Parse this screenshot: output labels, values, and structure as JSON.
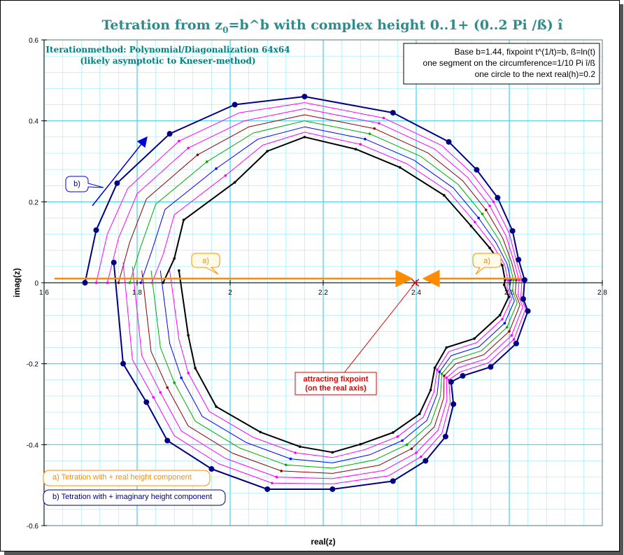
{
  "title": {
    "main": "Tetration from z",
    "sub": "0",
    "rest": "=b^b with complex height 0..1+ (0..2 Pi /ß) î"
  },
  "method": {
    "line1": "Iterationmethod: Polynomial/Diagonalization 64x64",
    "line2": "(likely asymptotic to Kneser-method)"
  },
  "info": {
    "line1": "Base b=1.44, fixpoint t^(1/t)=b, ß=ln(t)",
    "line2": "one segment on the circumference=1/10 Pi î/ß",
    "line3": "one circle to the next  real(h)=0.2"
  },
  "annotations": {
    "a_label": "a)",
    "b_label": "b)",
    "fixpoint_line1": "attracting fixpoint",
    "fixpoint_line2": "(on the real axis)",
    "legend_a": "a) Tetration with + real height component",
    "legend_b": "b) Tetration with + imaginary height component"
  },
  "colors": {
    "title": "#2e8b8b",
    "grid": "#80e8ff",
    "grid_major": "#40d0e8",
    "orange": "#ff8c00",
    "blue": "#000080",
    "red": "#e00000",
    "curves": [
      "#000080",
      "#ff00ff",
      "#ff00ff",
      "#8b0000",
      "#00aa00",
      "#0000ff",
      "#ff00ff",
      "#000000"
    ]
  },
  "chart_data": {
    "type": "scatter",
    "xlabel": "real(z)",
    "ylabel": "imag(z)",
    "xlim": [
      1.6,
      2.8
    ],
    "ylim": [
      -0.6,
      0.6
    ],
    "xticks": [
      "1.6",
      "1.8",
      "2",
      "2.2",
      "2.4",
      "2.6",
      "2.8"
    ],
    "yticks": [
      "0.6",
      "0.4",
      "0.2",
      "0",
      "-0.2",
      "-0.4",
      "-0.6"
    ],
    "grid": true,
    "fixpoint": {
      "x": 2.398,
      "y": 0
    },
    "series": [
      {
        "points": [
          [
            1.688,
            0.0
          ],
          [
            1.712,
            0.13
          ],
          [
            1.757,
            0.246
          ],
          [
            1.87,
            0.368
          ],
          [
            2.01,
            0.44
          ],
          [
            2.16,
            0.46
          ],
          [
            2.35,
            0.42
          ],
          [
            2.47,
            0.348
          ],
          [
            2.53,
            0.279
          ],
          [
            2.575,
            0.21
          ],
          [
            2.607,
            0.128
          ],
          [
            2.62,
            0.057
          ],
          [
            2.633,
            0.007
          ],
          [
            2.63,
            -0.04
          ],
          [
            2.64,
            -0.07
          ],
          [
            2.615,
            -0.15
          ],
          [
            2.56,
            -0.208
          ],
          [
            2.5,
            -0.23
          ],
          [
            2.475,
            -0.245
          ],
          [
            2.48,
            -0.3
          ],
          [
            2.463,
            -0.38
          ],
          [
            2.42,
            -0.44
          ],
          [
            2.35,
            -0.49
          ],
          [
            2.22,
            -0.51
          ],
          [
            2.08,
            -0.51
          ],
          [
            1.96,
            -0.46
          ],
          [
            1.865,
            -0.39
          ],
          [
            1.82,
            -0.295
          ],
          [
            1.77,
            -0.2
          ],
          [
            1.75,
            0.05
          ]
        ]
      },
      {
        "points": [
          [
            1.712,
            0.0
          ],
          [
            1.736,
            0.12
          ],
          [
            1.78,
            0.233
          ],
          [
            1.89,
            0.35
          ],
          [
            2.02,
            0.42
          ],
          [
            2.16,
            0.445
          ],
          [
            2.33,
            0.407
          ],
          [
            2.455,
            0.339
          ],
          [
            2.52,
            0.27
          ],
          [
            2.566,
            0.2
          ],
          [
            2.6,
            0.122
          ],
          [
            2.615,
            0.055
          ],
          [
            2.627,
            0.007
          ],
          [
            2.625,
            -0.035
          ],
          [
            2.635,
            -0.065
          ],
          [
            2.61,
            -0.14
          ],
          [
            2.555,
            -0.198
          ],
          [
            2.495,
            -0.22
          ],
          [
            2.47,
            -0.24
          ],
          [
            2.473,
            -0.295
          ],
          [
            2.455,
            -0.372
          ],
          [
            2.41,
            -0.43
          ],
          [
            2.34,
            -0.477
          ],
          [
            2.22,
            -0.497
          ],
          [
            2.09,
            -0.495
          ],
          [
            1.975,
            -0.447
          ],
          [
            1.88,
            -0.378
          ],
          [
            1.835,
            -0.283
          ],
          [
            1.79,
            -0.19
          ],
          [
            1.77,
            0.05
          ]
        ]
      },
      {
        "points": [
          [
            1.736,
            0.0
          ],
          [
            1.76,
            0.11
          ],
          [
            1.8,
            0.22
          ],
          [
            1.91,
            0.333
          ],
          [
            2.03,
            0.4
          ],
          [
            2.16,
            0.43
          ],
          [
            2.32,
            0.394
          ],
          [
            2.44,
            0.33
          ],
          [
            2.51,
            0.261
          ],
          [
            2.558,
            0.19
          ],
          [
            2.593,
            0.116
          ],
          [
            2.61,
            0.053
          ],
          [
            2.621,
            0.007
          ],
          [
            2.619,
            -0.03
          ],
          [
            2.629,
            -0.06
          ],
          [
            2.605,
            -0.13
          ],
          [
            2.55,
            -0.188
          ],
          [
            2.49,
            -0.21
          ],
          [
            2.465,
            -0.235
          ],
          [
            2.466,
            -0.29
          ],
          [
            2.447,
            -0.364
          ],
          [
            2.4,
            -0.42
          ],
          [
            2.33,
            -0.464
          ],
          [
            2.22,
            -0.484
          ],
          [
            2.1,
            -0.48
          ],
          [
            1.99,
            -0.434
          ],
          [
            1.895,
            -0.366
          ],
          [
            1.85,
            -0.271
          ],
          [
            1.81,
            -0.18
          ],
          [
            1.79,
            0.04
          ]
        ]
      },
      {
        "points": [
          [
            1.76,
            0.0
          ],
          [
            1.784,
            0.1
          ],
          [
            1.82,
            0.207
          ],
          [
            1.93,
            0.316
          ],
          [
            2.04,
            0.385
          ],
          [
            2.16,
            0.415
          ],
          [
            2.31,
            0.381
          ],
          [
            2.425,
            0.321
          ],
          [
            2.5,
            0.252
          ],
          [
            2.55,
            0.18
          ],
          [
            2.586,
            0.11
          ],
          [
            2.605,
            0.051
          ],
          [
            2.615,
            0.007
          ],
          [
            2.613,
            -0.025
          ],
          [
            2.623,
            -0.055
          ],
          [
            2.6,
            -0.12
          ],
          [
            2.545,
            -0.178
          ],
          [
            2.485,
            -0.2
          ],
          [
            2.46,
            -0.23
          ],
          [
            2.459,
            -0.285
          ],
          [
            2.439,
            -0.356
          ],
          [
            2.39,
            -0.41
          ],
          [
            2.32,
            -0.451
          ],
          [
            2.22,
            -0.471
          ],
          [
            2.11,
            -0.465
          ],
          [
            2.005,
            -0.421
          ],
          [
            1.91,
            -0.354
          ],
          [
            1.865,
            -0.259
          ],
          [
            1.83,
            -0.17
          ],
          [
            1.81,
            0.03
          ]
        ]
      },
      {
        "points": [
          [
            1.784,
            0.0
          ],
          [
            1.808,
            0.09
          ],
          [
            1.84,
            0.194
          ],
          [
            1.95,
            0.299
          ],
          [
            2.05,
            0.37
          ],
          [
            2.16,
            0.4
          ],
          [
            2.3,
            0.368
          ],
          [
            2.41,
            0.312
          ],
          [
            2.49,
            0.243
          ],
          [
            2.542,
            0.17
          ],
          [
            2.579,
            0.104
          ],
          [
            2.6,
            0.049
          ],
          [
            2.609,
            0.007
          ],
          [
            2.607,
            -0.02
          ],
          [
            2.617,
            -0.05
          ],
          [
            2.595,
            -0.11
          ],
          [
            2.54,
            -0.168
          ],
          [
            2.48,
            -0.19
          ],
          [
            2.455,
            -0.225
          ],
          [
            2.452,
            -0.28
          ],
          [
            2.431,
            -0.348
          ],
          [
            2.38,
            -0.4
          ],
          [
            2.31,
            -0.438
          ],
          [
            2.22,
            -0.458
          ],
          [
            2.12,
            -0.45
          ],
          [
            2.02,
            -0.408
          ],
          [
            1.925,
            -0.342
          ],
          [
            1.88,
            -0.247
          ],
          [
            1.85,
            -0.16
          ],
          [
            1.83,
            0.03
          ]
        ]
      },
      {
        "points": [
          [
            1.808,
            0.0
          ],
          [
            1.832,
            0.08
          ],
          [
            1.86,
            0.181
          ],
          [
            1.97,
            0.282
          ],
          [
            2.06,
            0.355
          ],
          [
            2.16,
            0.385
          ],
          [
            2.29,
            0.355
          ],
          [
            2.395,
            0.303
          ],
          [
            2.48,
            0.234
          ],
          [
            2.534,
            0.16
          ],
          [
            2.572,
            0.098
          ],
          [
            2.595,
            0.047
          ],
          [
            2.603,
            0.007
          ],
          [
            2.601,
            -0.015
          ],
          [
            2.611,
            -0.045
          ],
          [
            2.59,
            -0.1
          ],
          [
            2.535,
            -0.158
          ],
          [
            2.475,
            -0.18
          ],
          [
            2.45,
            -0.22
          ],
          [
            2.445,
            -0.275
          ],
          [
            2.423,
            -0.34
          ],
          [
            2.37,
            -0.39
          ],
          [
            2.3,
            -0.425
          ],
          [
            2.22,
            -0.445
          ],
          [
            2.13,
            -0.435
          ],
          [
            2.035,
            -0.395
          ],
          [
            1.94,
            -0.33
          ],
          [
            1.895,
            -0.235
          ],
          [
            1.87,
            -0.15
          ],
          [
            1.85,
            0.03
          ]
        ]
      },
      {
        "points": [
          [
            1.832,
            0.0
          ],
          [
            1.856,
            0.07
          ],
          [
            1.88,
            0.168
          ],
          [
            1.99,
            0.265
          ],
          [
            2.07,
            0.34
          ],
          [
            2.16,
            0.372
          ],
          [
            2.28,
            0.342
          ],
          [
            2.38,
            0.294
          ],
          [
            2.47,
            0.225
          ],
          [
            2.526,
            0.15
          ],
          [
            2.565,
            0.092
          ],
          [
            2.59,
            0.045
          ],
          [
            2.597,
            0.007
          ],
          [
            2.595,
            -0.01
          ],
          [
            2.605,
            -0.04
          ],
          [
            2.585,
            -0.09
          ],
          [
            2.53,
            -0.148
          ],
          [
            2.47,
            -0.17
          ],
          [
            2.445,
            -0.215
          ],
          [
            2.438,
            -0.27
          ],
          [
            2.415,
            -0.332
          ],
          [
            2.36,
            -0.38
          ],
          [
            2.29,
            -0.412
          ],
          [
            2.22,
            -0.432
          ],
          [
            2.14,
            -0.42
          ],
          [
            2.05,
            -0.382
          ],
          [
            1.955,
            -0.318
          ],
          [
            1.91,
            -0.223
          ],
          [
            1.89,
            -0.14
          ],
          [
            1.87,
            0.03
          ]
        ]
      },
      {
        "points": [
          [
            1.856,
            0.0
          ],
          [
            1.88,
            0.06
          ],
          [
            1.9,
            0.155
          ],
          [
            2.01,
            0.248
          ],
          [
            2.08,
            0.325
          ],
          [
            2.16,
            0.36
          ],
          [
            2.27,
            0.33
          ],
          [
            2.365,
            0.285
          ],
          [
            2.46,
            0.216
          ],
          [
            2.518,
            0.14
          ],
          [
            2.558,
            0.086
          ],
          [
            2.585,
            0.043
          ],
          [
            2.591,
            0.007
          ],
          [
            2.589,
            -0.005
          ],
          [
            2.599,
            -0.035
          ],
          [
            2.58,
            -0.08
          ],
          [
            2.525,
            -0.138
          ],
          [
            2.465,
            -0.16
          ],
          [
            2.44,
            -0.21
          ],
          [
            2.431,
            -0.265
          ],
          [
            2.407,
            -0.324
          ],
          [
            2.35,
            -0.37
          ],
          [
            2.28,
            -0.399
          ],
          [
            2.22,
            -0.419
          ],
          [
            2.15,
            -0.405
          ],
          [
            2.065,
            -0.369
          ],
          [
            1.97,
            -0.306
          ],
          [
            1.925,
            -0.211
          ],
          [
            1.91,
            -0.13
          ],
          [
            1.89,
            0.03
          ]
        ]
      }
    ]
  }
}
